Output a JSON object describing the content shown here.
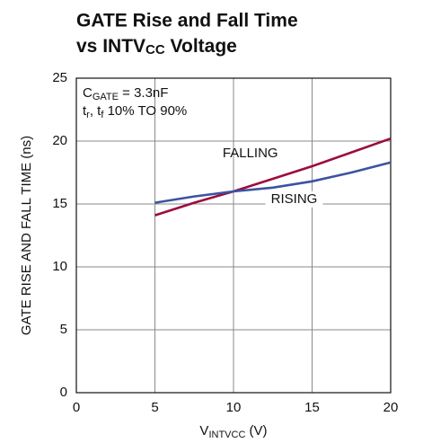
{
  "chart_data": {
    "type": "line",
    "title": "GATE Rise and Fall Time",
    "subtitle": [
      "vs INTV",
      "CC",
      " Voltage"
    ],
    "x_label": [
      "V",
      "INTVCC",
      " (V)"
    ],
    "y_label": "GATE RISE AND FALL TIME (ns)",
    "annotations": [
      [
        "C",
        "GATE",
        " = 3.3nF"
      ],
      [
        "t",
        "r",
        ", t",
        "f",
        " 10% TO 90%"
      ]
    ],
    "x": [
      5,
      7.5,
      10,
      12.5,
      15,
      17.5,
      20
    ],
    "series": [
      {
        "name": "FALLING",
        "color": "#9b0d3c",
        "values": [
          14.1,
          15.1,
          16.0,
          17.0,
          18.0,
          19.1,
          20.2
        ]
      },
      {
        "name": "RISING",
        "color": "#3b54a0",
        "values": [
          15.1,
          15.6,
          16.0,
          16.3,
          16.8,
          17.5,
          18.3
        ]
      }
    ],
    "xlim": [
      0,
      20
    ],
    "xticks": [
      0,
      5,
      10,
      15,
      20
    ],
    "ylim": [
      0,
      25
    ],
    "yticks": [
      0,
      5,
      10,
      15,
      20,
      25
    ],
    "grid": true
  }
}
